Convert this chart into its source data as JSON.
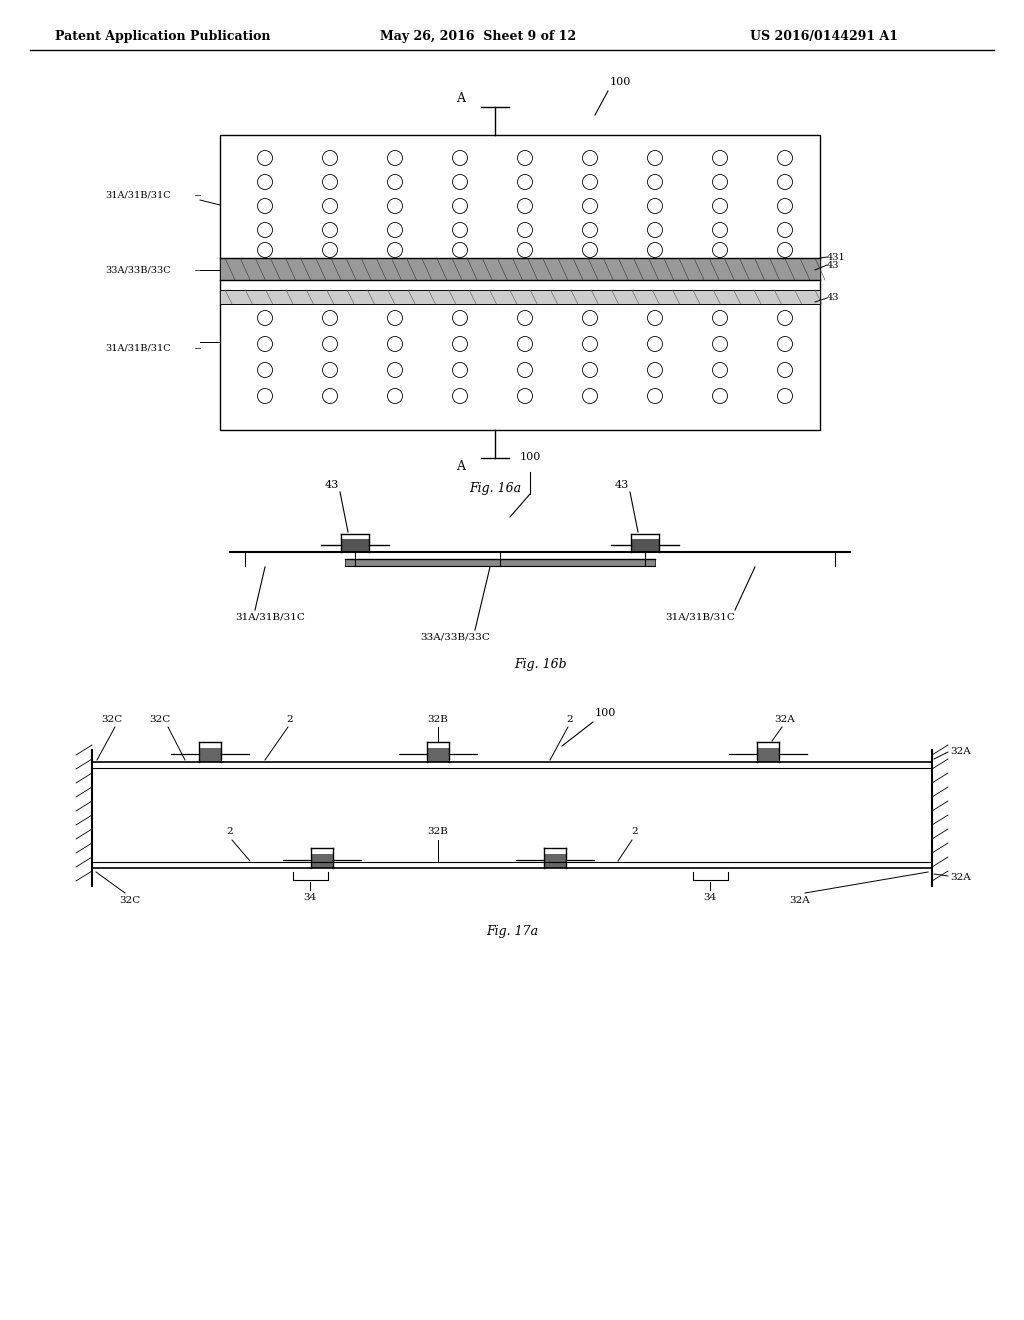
{
  "header_left": "Patent Application Publication",
  "header_mid": "May 26, 2016  Sheet 9 of 12",
  "header_right": "US 2016/0144291 A1",
  "fig16a_label": "Fig. 16a",
  "fig16b_label": "Fig. 16b",
  "fig17a_label": "Fig. 17a",
  "bg_color": "#ffffff",
  "line_color": "#000000",
  "line_width": 1.0,
  "thin_line": 0.5,
  "gray_fill": "#aaaaaa"
}
